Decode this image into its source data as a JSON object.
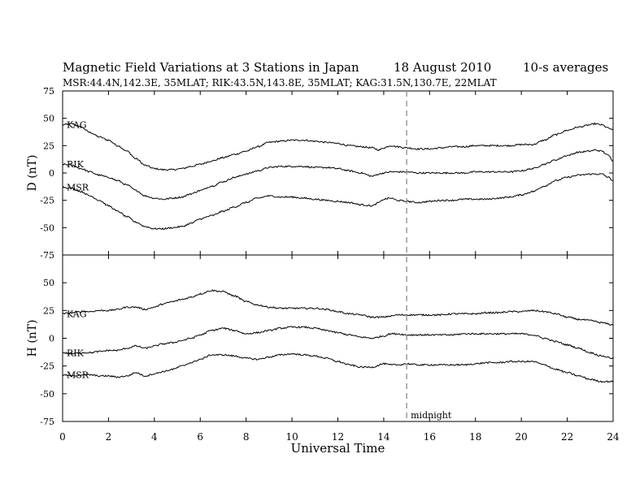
{
  "header": {
    "title": "Magnetic Field Variations at 3 Stations in Japan",
    "date": "18  August  2010",
    "averaging": "10-s averages",
    "stations_line": "MSR:44.4N,142.3E, 35MLAT;  RIK:43.5N,143.8E, 35MLAT;  KAG:31.5N,130.7E, 22MLAT"
  },
  "annotation": {
    "midnight_label": "midnight",
    "midnight_ut": 15
  },
  "chart_data": {
    "type": "line",
    "xlabel": "Universal Time",
    "xlim": [
      0,
      24
    ],
    "xticks": [
      0,
      2,
      4,
      6,
      8,
      10,
      12,
      14,
      16,
      18,
      20,
      22,
      24
    ],
    "xtick_labels": [
      "0",
      "2",
      "4",
      "6",
      "8",
      "10",
      "12",
      "14",
      "16",
      "18",
      "20",
      "22",
      "24"
    ],
    "grid": false,
    "panels": [
      {
        "ylabel": "D  (nT)",
        "ylim": [
          -75,
          75
        ],
        "yticks": [
          -75,
          -50,
          -25,
          0,
          25,
          50,
          75
        ],
        "ytick_labels": [
          "-75",
          "-50",
          "-25",
          "0",
          "25",
          "50",
          "75"
        ],
        "series": [
          {
            "name": "KAG",
            "x": [
              0,
              0.4,
              0.8,
              1.2,
              1.6,
              2.0,
              2.4,
              2.8,
              3.2,
              3.6,
              4.0,
              4.4,
              4.8,
              5.2,
              5.6,
              6.0,
              6.5,
              7.0,
              7.5,
              8.0,
              8.5,
              9.0,
              9.5,
              10.0,
              10.5,
              11.0,
              11.5,
              12.0,
              12.5,
              13.0,
              13.5,
              13.8,
              14.0,
              14.3,
              14.6,
              15.0,
              15.5,
              16.0,
              16.5,
              17.0,
              17.5,
              18.0,
              18.5,
              19.0,
              19.5,
              20.0,
              20.5,
              21.0,
              21.5,
              22.0,
              22.5,
              23.0,
              23.2,
              23.5,
              23.8,
              24.0
            ],
            "y": [
              44,
              45,
              42,
              37,
              33,
              30,
              25,
              20,
              13,
              7,
              4,
              3,
              3,
              4,
              6,
              8,
              11,
              14,
              17,
              20,
              24,
              28,
              29,
              30,
              30,
              29,
              28,
              27,
              25,
              24,
              23,
              21,
              23,
              25,
              24,
              23,
              22,
              22,
              23,
              24,
              24,
              25,
              25,
              25,
              25,
              26,
              26,
              30,
              35,
              39,
              42,
              44,
              45,
              44,
              41,
              39
            ]
          },
          {
            "name": "RIK",
            "x": [
              0,
              0.4,
              0.8,
              1.2,
              1.6,
              2.0,
              2.4,
              2.8,
              3.2,
              3.6,
              4.0,
              4.4,
              4.8,
              5.2,
              5.6,
              6.0,
              6.5,
              7.0,
              7.5,
              8.0,
              8.5,
              9.0,
              9.5,
              10.0,
              10.5,
              11.0,
              11.5,
              12.0,
              12.5,
              13.0,
              13.5,
              13.8,
              14.0,
              14.3,
              14.6,
              15.0,
              15.5,
              16.0,
              16.5,
              17.0,
              17.5,
              18.0,
              18.5,
              19.0,
              19.5,
              20.0,
              20.5,
              21.0,
              21.5,
              22.0,
              22.5,
              23.0,
              23.2,
              23.5,
              23.8,
              24.0
            ],
            "y": [
              8,
              7,
              4,
              1,
              -2,
              -4,
              -7,
              -11,
              -16,
              -21,
              -23,
              -24,
              -23,
              -22,
              -19,
              -16,
              -12,
              -8,
              -4,
              -1,
              2,
              5,
              6,
              6,
              6,
              5,
              5,
              4,
              2,
              0,
              -3,
              -1,
              0,
              1,
              1,
              1,
              0,
              0,
              0,
              0,
              0,
              1,
              1,
              1,
              1,
              2,
              4,
              8,
              12,
              16,
              19,
              20,
              21,
              20,
              16,
              11
            ]
          },
          {
            "name": "MSR",
            "x": [
              0,
              0.4,
              0.8,
              1.2,
              1.6,
              2.0,
              2.4,
              2.8,
              3.2,
              3.6,
              4.0,
              4.4,
              4.8,
              5.2,
              5.6,
              6.0,
              6.5,
              7.0,
              7.5,
              8.0,
              8.5,
              9.0,
              9.5,
              10.0,
              10.5,
              11.0,
              11.5,
              12.0,
              12.5,
              13.0,
              13.5,
              13.8,
              14.0,
              14.3,
              14.6,
              15.0,
              15.5,
              16.0,
              16.5,
              17.0,
              17.5,
              18.0,
              18.5,
              19.0,
              19.5,
              20.0,
              20.5,
              21.0,
              21.5,
              22.0,
              22.5,
              23.0,
              23.2,
              23.5,
              23.8,
              24.0
            ],
            "y": [
              -13,
              -14,
              -17,
              -21,
              -25,
              -30,
              -35,
              -40,
              -45,
              -49,
              -51,
              -51,
              -50,
              -49,
              -46,
              -42,
              -39,
              -35,
              -31,
              -27,
              -23,
              -21,
              -22,
              -22,
              -23,
              -24,
              -25,
              -26,
              -27,
              -29,
              -30,
              -27,
              -24,
              -23,
              -25,
              -26,
              -27,
              -26,
              -25,
              -25,
              -24,
              -24,
              -24,
              -23,
              -22,
              -20,
              -17,
              -12,
              -7,
              -4,
              -2,
              -1,
              -1,
              -1,
              -4,
              -7
            ]
          }
        ]
      },
      {
        "ylabel": "H  (nT)",
        "ylim": [
          -75,
          75
        ],
        "yticks": [
          -75,
          -50,
          -25,
          0,
          25,
          50,
          75
        ],
        "ytick_labels": [
          "-75",
          "-50",
          "-25",
          "0",
          "25",
          "50",
          "75"
        ],
        "series": [
          {
            "name": "KAG",
            "x": [
              0,
              0.4,
              0.8,
              1.2,
              1.6,
              2.0,
              2.4,
              2.8,
              3.2,
              3.6,
              4.0,
              4.4,
              4.8,
              5.2,
              5.6,
              6.0,
              6.5,
              7.0,
              7.5,
              8.0,
              8.5,
              9.0,
              9.5,
              10.0,
              10.5,
              11.0,
              11.5,
              12.0,
              12.5,
              13.0,
              13.5,
              14.0,
              14.3,
              14.6,
              15.0,
              15.5,
              16.0,
              16.5,
              17.0,
              17.5,
              18.0,
              18.5,
              19.0,
              19.5,
              20.0,
              20.5,
              21.0,
              21.5,
              22.0,
              22.5,
              23.0,
              23.5,
              24.0
            ],
            "y": [
              22,
              23,
              24,
              24,
              25,
              25,
              26,
              28,
              28,
              26,
              28,
              31,
              33,
              35,
              37,
              40,
              43,
              42,
              38,
              33,
              30,
              28,
              27,
              27,
              27,
              27,
              26,
              24,
              22,
              21,
              19,
              19,
              20,
              21,
              21,
              21,
              21,
              21,
              22,
              22,
              22,
              23,
              23,
              24,
              24,
              25,
              24,
              22,
              19,
              17,
              16,
              14,
              12
            ]
          },
          {
            "name": "RIK",
            "x": [
              0,
              0.4,
              0.8,
              1.2,
              1.6,
              2.0,
              2.4,
              2.8,
              3.2,
              3.6,
              4.0,
              4.4,
              4.8,
              5.2,
              5.6,
              6.0,
              6.5,
              7.0,
              7.5,
              8.0,
              8.5,
              9.0,
              9.5,
              10.0,
              10.5,
              11.0,
              11.5,
              12.0,
              12.5,
              13.0,
              13.5,
              14.0,
              14.3,
              14.6,
              15.0,
              15.5,
              16.0,
              16.5,
              17.0,
              17.5,
              18.0,
              18.5,
              19.0,
              19.5,
              20.0,
              20.5,
              21.0,
              21.5,
              22.0,
              22.5,
              23.0,
              23.5,
              24.0
            ],
            "y": [
              -13,
              -14,
              -13,
              -13,
              -12,
              -11,
              -11,
              -9,
              -7,
              -9,
              -7,
              -5,
              -4,
              -2,
              0,
              3,
              7,
              9,
              7,
              4,
              5,
              7,
              9,
              10,
              10,
              9,
              7,
              5,
              3,
              1,
              0,
              2,
              4,
              4,
              3,
              3,
              3,
              3,
              3,
              4,
              4,
              4,
              4,
              4,
              4,
              3,
              0,
              -3,
              -6,
              -9,
              -13,
              -16,
              -18
            ]
          },
          {
            "name": "MSR",
            "x": [
              0,
              0.4,
              0.8,
              1.2,
              1.6,
              2.0,
              2.4,
              2.8,
              3.2,
              3.6,
              4.0,
              4.4,
              4.8,
              5.2,
              5.6,
              6.0,
              6.5,
              7.0,
              7.5,
              8.0,
              8.5,
              9.0,
              9.5,
              10.0,
              10.5,
              11.0,
              11.5,
              12.0,
              12.5,
              13.0,
              13.5,
              14.0,
              14.3,
              14.6,
              15.0,
              15.5,
              16.0,
              16.5,
              17.0,
              17.5,
              18.0,
              18.5,
              19.0,
              19.5,
              20.0,
              20.5,
              21.0,
              21.5,
              22.0,
              22.5,
              23.0,
              23.5,
              24.0
            ],
            "y": [
              -33,
              -34,
              -33,
              -33,
              -34,
              -34,
              -35,
              -34,
              -31,
              -34,
              -32,
              -30,
              -28,
              -25,
              -22,
              -19,
              -15,
              -15,
              -16,
              -18,
              -19,
              -17,
              -15,
              -14,
              -15,
              -16,
              -18,
              -21,
              -24,
              -26,
              -26,
              -23,
              -24,
              -24,
              -23,
              -24,
              -24,
              -24,
              -24,
              -24,
              -23,
              -22,
              -22,
              -21,
              -21,
              -21,
              -24,
              -28,
              -31,
              -34,
              -37,
              -39,
              -39
            ]
          }
        ]
      }
    ]
  }
}
